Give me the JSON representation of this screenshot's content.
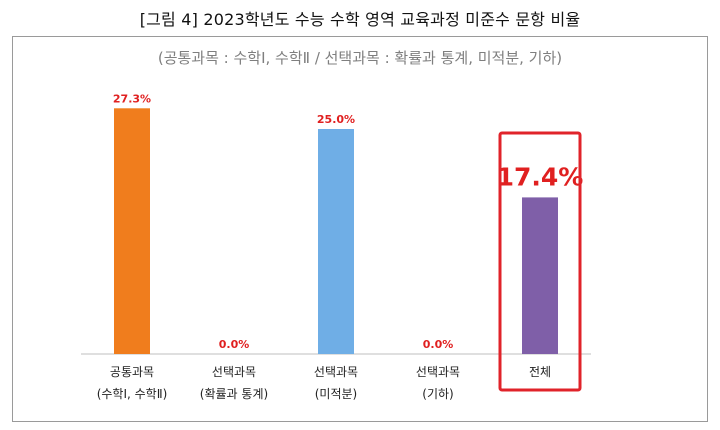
{
  "figure_title": "[그림 4] 2023학년도 수능 수학 영역 교육과정 미준수 문항 비율",
  "chart_data": {
    "type": "bar",
    "subtitle": "(공통과목 : 수학Ⅰ, 수학Ⅱ / 선택과목 : 확률과 통계, 미적분, 기하)",
    "categories": [
      [
        "공통과목",
        "(수학Ⅰ, 수학Ⅱ)"
      ],
      [
        "선택과목",
        "(확률과 통계)"
      ],
      [
        "선택과목",
        "(미적분)"
      ],
      [
        "선택과목",
        "(기하)"
      ],
      [
        "전체",
        ""
      ]
    ],
    "values": [
      27.3,
      0.0,
      25.0,
      0.0,
      17.4
    ],
    "value_labels": [
      "27.3%",
      "0.0%",
      "25.0%",
      "0.0%",
      "17.4%"
    ],
    "bar_colors": [
      "#f07d1d",
      "#7fb2e0",
      "#6faee6",
      "#7fb2e0",
      "#7f5fa8"
    ],
    "highlight_index": 4,
    "highlight_color": "#e0232a",
    "label_color": "#e02020",
    "ylim": [
      0,
      30
    ],
    "grid": false,
    "legend": "none"
  }
}
